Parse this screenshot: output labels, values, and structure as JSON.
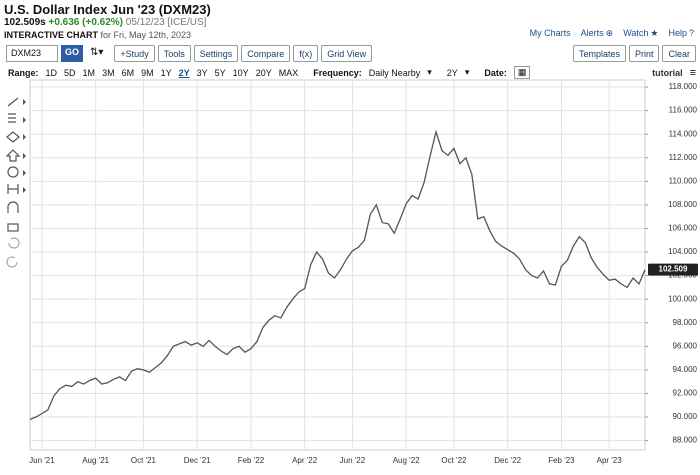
{
  "header": {
    "title": "U.S. Dollar Index Jun '23 (DXM23)",
    "price": "102.509s",
    "change": "+0.636",
    "change_pct": "(+0.62%)",
    "date_source": "05/12/23 [ICE/US]",
    "chart_label": "INTERACTIVE CHART",
    "chart_date": "for Fri, May 12th, 2023",
    "links": [
      "My Charts",
      "Alerts",
      "Watch",
      "Help"
    ]
  },
  "toolbar": {
    "symbol": "DXM23",
    "go": "GO",
    "buttons": [
      "+Study",
      "Tools",
      "Settings",
      "Compare",
      "f(x)",
      "Grid View"
    ],
    "right_buttons": [
      "Templates",
      "Print",
      "Clear"
    ]
  },
  "range_bar": {
    "range_label": "Range:",
    "ranges": [
      "1D",
      "5D",
      "1M",
      "3M",
      "6M",
      "9M",
      "1Y",
      "2Y",
      "3Y",
      "5Y",
      "10Y",
      "20Y",
      "MAX"
    ],
    "selected": "2Y",
    "frequency_label": "Frequency:",
    "frequency": "Daily Nearby",
    "period": "2Y",
    "date_label": "Date:",
    "tutorial": "tutorial"
  },
  "chart_data": {
    "type": "line",
    "color": "#555555",
    "grid": true,
    "categories": [
      null,
      null,
      "Jun '21",
      null,
      null,
      null,
      null,
      null,
      null,
      null,
      null,
      "Aug '21",
      null,
      null,
      null,
      null,
      null,
      null,
      null,
      "Oct '21",
      null,
      null,
      null,
      null,
      null,
      null,
      null,
      null,
      "Dec '21",
      null,
      null,
      null,
      null,
      null,
      null,
      null,
      null,
      "Feb '22",
      null,
      null,
      null,
      null,
      null,
      null,
      null,
      null,
      "Apr '22",
      null,
      null,
      null,
      null,
      null,
      null,
      null,
      "Jun '22",
      null,
      null,
      null,
      null,
      null,
      null,
      null,
      null,
      "Aug '22",
      null,
      null,
      null,
      null,
      null,
      null,
      null,
      "Oct '22",
      null,
      null,
      null,
      null,
      null,
      null,
      null,
      null,
      "Dec '22",
      null,
      null,
      null,
      null,
      null,
      null,
      null,
      null,
      "Feb '23",
      null,
      null,
      null,
      null,
      null,
      null,
      null,
      "Apr '23",
      null,
      null,
      null,
      null,
      null,
      null
    ],
    "values": [
      89.8,
      90.0,
      90.3,
      90.6,
      91.8,
      92.4,
      92.7,
      92.6,
      93.0,
      92.8,
      93.1,
      93.3,
      92.8,
      92.9,
      93.2,
      93.4,
      93.1,
      93.9,
      94.1,
      94.0,
      93.8,
      94.2,
      94.6,
      95.2,
      96.0,
      96.2,
      96.4,
      96.1,
      96.3,
      96.0,
      96.5,
      96.0,
      95.6,
      95.3,
      95.8,
      96.0,
      95.5,
      95.8,
      96.4,
      97.6,
      98.2,
      98.6,
      98.4,
      99.3,
      100.0,
      100.6,
      100.9,
      102.9,
      104.0,
      103.4,
      102.2,
      101.8,
      102.5,
      103.4,
      104.1,
      104.4,
      105.0,
      107.2,
      108.0,
      106.5,
      106.4,
      105.6,
      106.8,
      108.1,
      108.8,
      108.5,
      109.9,
      112.1,
      114.2,
      112.6,
      112.2,
      112.8,
      111.5,
      112.0,
      110.6,
      106.8,
      107.0,
      105.8,
      104.9,
      104.5,
      104.2,
      103.9,
      103.4,
      102.5,
      102.0,
      101.8,
      102.4,
      101.3,
      101.2,
      102.8,
      103.3,
      104.5,
      105.3,
      104.8,
      103.5,
      102.7,
      102.1,
      101.6,
      101.7,
      101.3,
      101.0,
      101.8,
      101.3,
      102.5
    ],
    "last_price": 102.509,
    "ylim": [
      87.2,
      118.6
    ],
    "yticks": [
      {
        "value": 88,
        "label": "88.000"
      },
      {
        "value": 90,
        "label": "90.000"
      },
      {
        "value": 92,
        "label": "92.000"
      },
      {
        "value": 94,
        "label": "94.000"
      },
      {
        "value": 96,
        "label": "96.000"
      },
      {
        "value": 98,
        "label": "98.000"
      },
      {
        "value": 100,
        "label": "100.000"
      },
      {
        "value": 102,
        "label": "102.000"
      },
      {
        "value": 104,
        "label": "104.000"
      },
      {
        "value": 106,
        "label": "106.000"
      },
      {
        "value": 108,
        "label": "108.000"
      },
      {
        "value": 110,
        "label": "110.000"
      },
      {
        "value": 112,
        "label": "112.000"
      },
      {
        "value": 114,
        "label": "114.000"
      },
      {
        "value": 116,
        "label": "116.000"
      },
      {
        "value": 118,
        "label": "118.000"
      }
    ]
  }
}
